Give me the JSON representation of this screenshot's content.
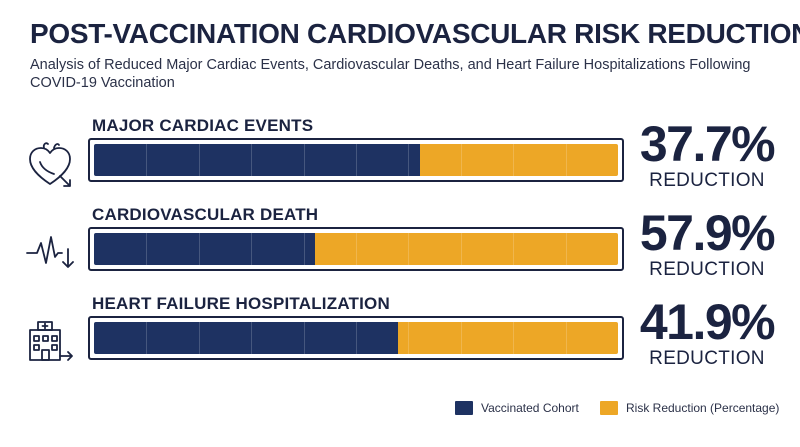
{
  "title": "POST-VACCINATION CARDIOVASCULAR RISK REDUCTION",
  "subtitle": "Analysis of Reduced Major Cardiac Events, Cardiovascular Deaths, and Heart Failure Hospitalizations Following COVID-19 Vaccination",
  "colors": {
    "vaccinated": "#1e3262",
    "risk": "#eda726",
    "text": "#1b2340"
  },
  "chart_data": {
    "type": "bar",
    "orientation": "horizontal",
    "stacked": true,
    "categories": [
      "MAJOR CARDIAC EVENTS",
      "CARDIOVASCULAR DEATH",
      "HEART FAILURE HOSPITALIZATION"
    ],
    "icons": [
      "heart-icon",
      "pulse-icon",
      "hospital-icon"
    ],
    "series": [
      {
        "name": "Vaccinated Cohort",
        "values": [
          62.3,
          42.1,
          58.1
        ]
      },
      {
        "name": "Risk Reduction (Percentage)",
        "values": [
          37.7,
          57.9,
          41.9
        ]
      }
    ],
    "value_labels": [
      "37.7%",
      "57.9%",
      "41.9%"
    ],
    "value_caption": "REDUCTION",
    "xlim": [
      0,
      100
    ],
    "grid": true,
    "legend_position": "bottom-right"
  }
}
